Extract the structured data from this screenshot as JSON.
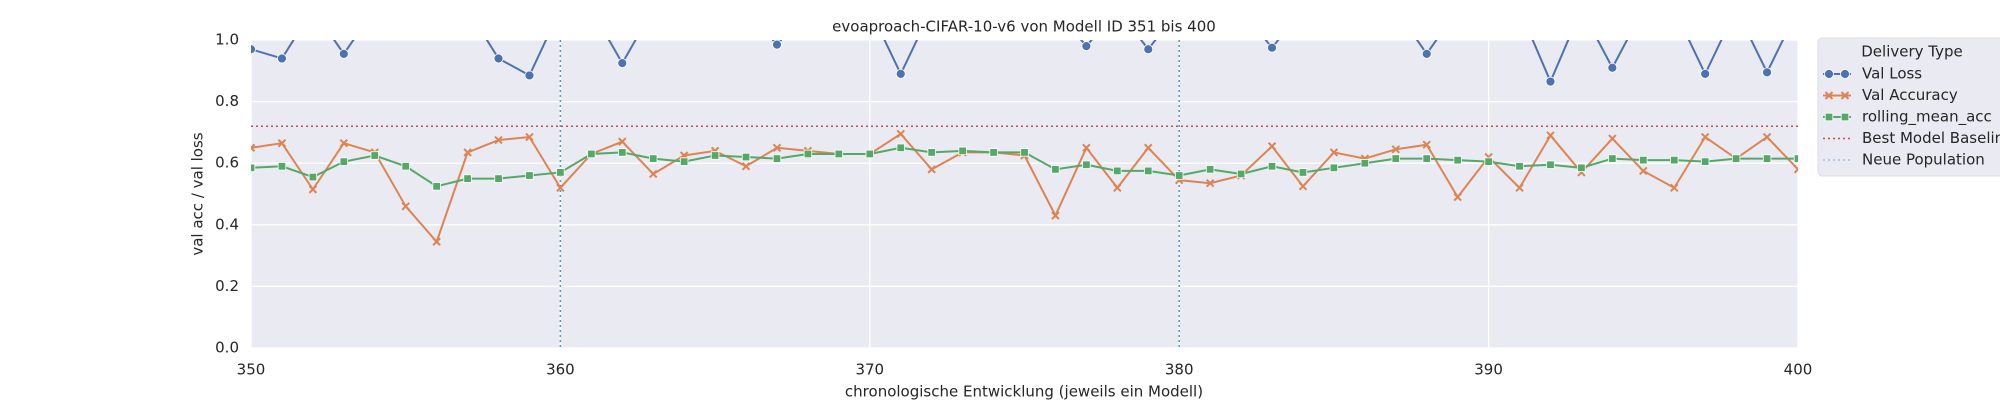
{
  "chart_data": {
    "type": "line",
    "title": "evoaproach-CIFAR-10-v6 von Modell ID 351 bis 400",
    "x_label": "chronologische Entwicklung (jeweils ein Modell)",
    "y_label": "val acc / val loss",
    "x": [
      350,
      351,
      352,
      353,
      354,
      355,
      356,
      357,
      358,
      359,
      360,
      361,
      362,
      363,
      364,
      365,
      366,
      367,
      368,
      369,
      370,
      371,
      372,
      373,
      374,
      375,
      376,
      377,
      378,
      379,
      380,
      381,
      382,
      383,
      384,
      385,
      386,
      387,
      388,
      389,
      390,
      391,
      392,
      393,
      394,
      395,
      396,
      397,
      398,
      399,
      400
    ],
    "series": [
      {
        "name": "Val Loss",
        "color": "#4c72b0",
        "marker": "circle",
        "values": [
          0.97,
          0.94,
          1.1,
          0.955,
          1.1,
          1.1,
          1.1,
          1.1,
          0.94,
          0.885,
          1.1,
          1.1,
          0.925,
          1.1,
          1.1,
          1.1,
          1.1,
          0.985,
          1.1,
          1.1,
          1.1,
          0.89,
          1.1,
          1.1,
          1.1,
          1.1,
          1.1,
          0.98,
          1.1,
          0.97,
          1.1,
          1.1,
          1.1,
          0.975,
          1.1,
          1.1,
          1.1,
          1.1,
          0.955,
          1.1,
          1.1,
          1.1,
          0.865,
          1.1,
          0.91,
          1.1,
          1.1,
          0.89,
          1.1,
          0.895,
          1.1
        ]
      },
      {
        "name": "Val Accuracy",
        "color": "#dd8452",
        "marker": "x",
        "values": [
          0.65,
          0.665,
          0.515,
          0.665,
          0.635,
          0.46,
          0.345,
          0.635,
          0.675,
          0.685,
          0.52,
          0.63,
          0.67,
          0.565,
          0.625,
          0.64,
          0.59,
          0.65,
          0.64,
          0.63,
          0.63,
          0.695,
          0.58,
          0.635,
          0.635,
          0.625,
          0.43,
          0.65,
          0.52,
          0.65,
          0.545,
          0.535,
          0.56,
          0.655,
          0.525,
          0.635,
          0.615,
          0.645,
          0.66,
          0.49,
          0.62,
          0.52,
          0.69,
          0.57,
          0.68,
          0.575,
          0.52,
          0.685,
          0.615,
          0.685,
          0.58
        ]
      },
      {
        "name": "rolling_mean_acc",
        "color": "#55a868",
        "marker": "square",
        "values": [
          0.585,
          0.59,
          0.555,
          0.605,
          0.625,
          0.59,
          0.525,
          0.55,
          0.55,
          0.56,
          0.57,
          0.63,
          0.635,
          0.615,
          0.605,
          0.625,
          0.62,
          0.615,
          0.63,
          0.63,
          0.63,
          0.65,
          0.635,
          0.64,
          0.635,
          0.635,
          0.58,
          0.595,
          0.575,
          0.575,
          0.56,
          0.58,
          0.565,
          0.59,
          0.57,
          0.585,
          0.6,
          0.615,
          0.615,
          0.61,
          0.605,
          0.59,
          0.595,
          0.585,
          0.615,
          0.61,
          0.61,
          0.605,
          0.615,
          0.615,
          0.615
        ]
      }
    ],
    "hline": {
      "name": "Best Model Baseline",
      "value": 0.72,
      "color": "#c44e52"
    },
    "vlines": {
      "name": "Neue Population",
      "values": [
        360,
        380
      ],
      "color": "#4c9bc0"
    },
    "legend_title": "Delivery Type",
    "legend_position": "outside-right",
    "xlim": [
      350,
      400
    ],
    "xticks": [
      350,
      360,
      370,
      380,
      390,
      400
    ],
    "ylim": [
      0,
      1
    ],
    "yticks": [
      {
        "value": 0,
        "label": "0.0"
      },
      {
        "value": 0.2,
        "label": "0.2"
      },
      {
        "value": 0.4,
        "label": "0.4"
      },
      {
        "value": 0.6,
        "label": "0.6"
      },
      {
        "value": 0.8,
        "label": "0.8"
      },
      {
        "value": 1,
        "label": "1.0"
      }
    ],
    "grid": true
  }
}
